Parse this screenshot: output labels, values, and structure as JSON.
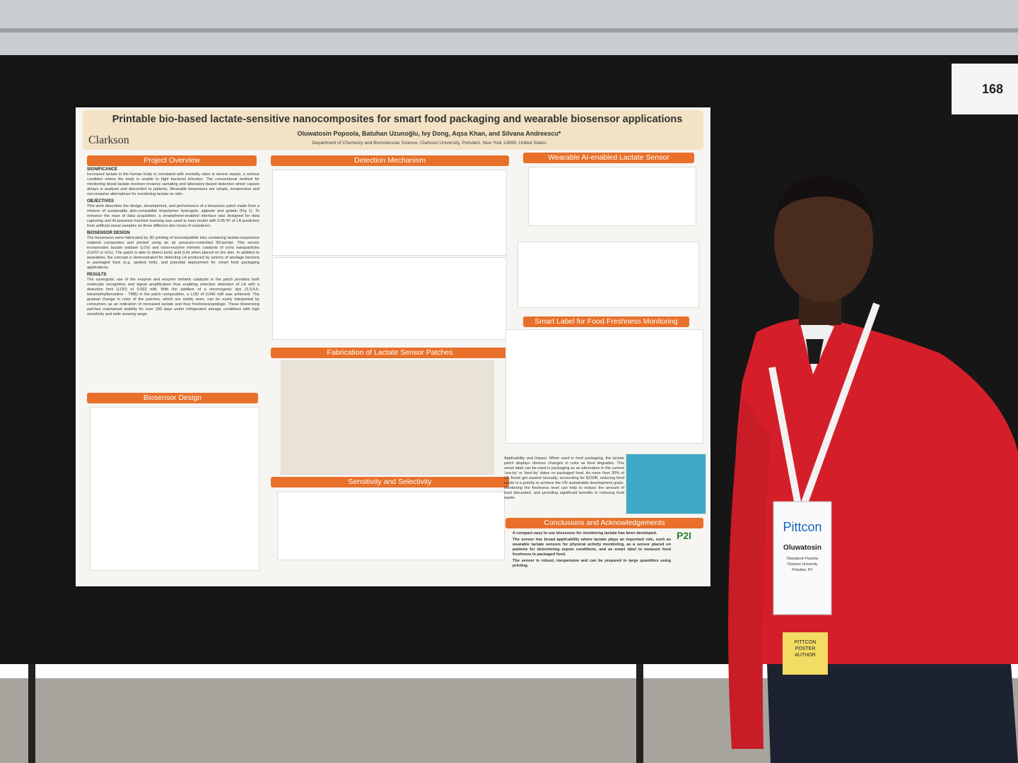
{
  "board_number": "168",
  "poster": {
    "title": "Printable bio-based lactate-sensitive nanocomposites for smart food packaging and wearable biosensor applications",
    "authors": "Oluwatosin Popoola, Batuhan Uzunoğlu, Ivy Dong, Aqsa Khan, and Silvana Andreescu*",
    "affiliation": "Department of Chemistry and Biomolecular Science, Clarkson University, Potsdam, New York 13699, United States",
    "logo": "Clarkson",
    "overview": {
      "heading": "Project Overview",
      "blocks": [
        {
          "label": "SIGNIFICANCE",
          "text": "Increased lactate in the human body is correlated with mortality rates in severe sepsis, a serious condition where the body is unable to fight bacterial infection. The conventional method for monitoring blood lactate involves invasive sampling and laboratory-based detection which causes delays in analysis and discomfort to patients. Wearable biosensors are simple, inexpensive and non-invasive alternatives for monitoring lactate on skin."
        },
        {
          "label": "OBJECTIVES",
          "text": "This work describes the design, development, and performance of a biosensor patch made from a mixture of sustainable skin-compatible biopolymer hydrogels, alginate and gelatin (Fig 1). To enhance the ease of data acquisition, a smartphone-enabled interface was designed for data capturing and AI-powered machine learning was used to train model with 0.95 R² of LA prediction from artificial sweat samples on three different skin tones of volunteers."
        },
        {
          "label": "BIOSENSOR DESIGN",
          "text": "The biosensors were fabricated by 3D printing of biocompatible inks containing lactate-responsive material composites and printed using an air pressure-controlled 3D-printer. This sensor incorporates lactate oxidase (LOx) and nano-enzyme mimetic catalysts of ceria nanoparticles (CeO2 or nCe). The patch is able to detect lactic acid (LA) when placed on the skin. In addition to wearables, the concept is demonstrated for detecting LA produced by actions of spoilage bacteria in packaged food (e.g. spoiled milk), and potential deployment for smart food packaging applications."
        },
        {
          "label": "RESULTS",
          "text": "The synergistic use of the enzyme and enzyme mimetic catalysts in the patch provides both molecular recognition and signal amplification thus enabling selective detection of LA with a detection limit (LOD) of 0.063 mM. With the addition of a chromogenic dye (3,3,5,5-tetramethylbenzidine - TMB) in the patch composition, a LOD of 0.046 mM was achieved. The gradual change in color of the patches, which are visibly seen, can be easily interpreted by consumers as an indication of increased lactate and thus freshness/spoilage. These biosensing patches maintained stability for over 180 days under refrigerated storage conditions with high sensitivity and wide sensing range."
        }
      ]
    },
    "sections": [
      "Biosensor Design",
      "Detection Mechanism",
      "Fabrication of Lactate Sensor Patches",
      "Sensitivity and Selectivity",
      "Wearable AI-enabled Lactate Sensor",
      "Smart Label for Food Freshness Monitoring",
      "Conclusions and Acknowledgements"
    ],
    "applicability": "Applicability and Impact. When used in food packaging, the lactate patch displays obvious changes in color as food degrades. This smart label can be used in packaging as an alternative to the current 'use-by' or 'best-by' dates on packaged food. As more than 30% of US foods get wasted annually, accounting for $150B, reducing food waste is a priority to achieve the UN sustainable development goals. Monitoring the freshness level can help to reduce the amount of food discarded, and providing significant benefits in reducing food waste.",
    "conclusions": [
      "A compact easy to use biosensor for monitoring lactate has been developed.",
      "The sensor has broad applicability where lactate plays an important role, such as wearable lactate sensors for physical activity monitoring, as a sensor placed on patients for determining sepsis conditions, and as smart label to measure food freshness in packaged food.",
      "The sensor is robust, inexpensive and can be prepared in large quantities using printing."
    ],
    "sponsor": "P2I"
  },
  "badge": {
    "event": "Pittcon",
    "first_name": "Oluwatosin",
    "full_name": "Oluwatosin Popoola",
    "org": "Clarkson University",
    "city": "Potsdam, NY",
    "ribbon": "PITTCON POSTER AUTHOR"
  }
}
